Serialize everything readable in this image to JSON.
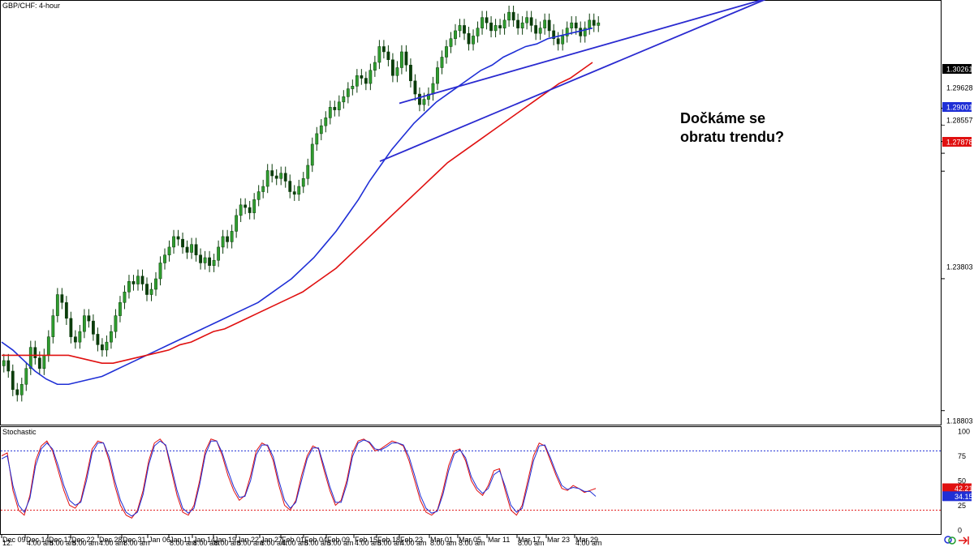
{
  "chart_data": {
    "type": "candlestick",
    "symbol_title": "GBP/CHF: 4-hour",
    "annotation": "Dočkáme se obratu trendu?",
    "price_axis": {
      "ticks": [
        "1.30261",
        "1.29628",
        "1.29001",
        "1.28557",
        "1.27878",
        "1.23803",
        "1.18803"
      ],
      "ylim": [
        1.18303,
        1.34303
      ]
    },
    "price_labels": [
      {
        "value": "1.30261",
        "color": "#000000"
      },
      {
        "value": "1.29628",
        "color": "#ffffff"
      },
      {
        "value": "1.29001",
        "color": "#1f2fd6"
      },
      {
        "value": "1.28557",
        "color": "#000000"
      },
      {
        "value": "1.27878",
        "color": "#e01010"
      }
    ],
    "x_axis": {
      "date_labels": [
        "Dec 09",
        "Dec 14",
        "Dec 17",
        "Dec 22",
        "Dec 28",
        "Dec 31",
        "Jan 06",
        "Jan 11",
        "Jan 14",
        "Jan 19",
        "Jan 22",
        "Jan 27",
        "Feb 01",
        "Feb 04",
        "Feb 09",
        "Feb 15",
        "Feb 18",
        "Feb 23",
        "Mar 01",
        "Mar 05",
        "Mar 11",
        "Mar 17",
        "Mar 23",
        "Mar 29"
      ],
      "time_labels": [
        "12:",
        "4:00 am",
        "8:00 am",
        "8:00 am",
        "4:00 am",
        "8:00 am",
        "8:00 am",
        "8:00 am",
        "8:00 am",
        "8:00 am",
        "8:00 am",
        "4:00 am",
        "8:00 am",
        "8:00 am",
        "4:00 am",
        "8:00 am",
        "4:00 am",
        "8:00 am",
        "8:00 am",
        "8:00 am",
        "4:00 am"
      ]
    },
    "series": [
      {
        "name": "",
        "kind": "price_close",
        "color": "#0b3d0b",
        "values": [
          1.207,
          1.203,
          1.196,
          1.194,
          1.198,
          1.204,
          1.212,
          1.208,
          1.204,
          1.209,
          1.216,
          1.224,
          1.232,
          1.229,
          1.223,
          1.216,
          1.214,
          1.218,
          1.224,
          1.222,
          1.217,
          1.213,
          1.211,
          1.214,
          1.218,
          1.224,
          1.229,
          1.233,
          1.237,
          1.236,
          1.239,
          1.236,
          1.232,
          1.234,
          1.238,
          1.244,
          1.247,
          1.25,
          1.254,
          1.253,
          1.25,
          1.248,
          1.251,
          1.247,
          1.244,
          1.246,
          1.243,
          1.245,
          1.25,
          1.254,
          1.252,
          1.256,
          1.262,
          1.266,
          1.265,
          1.263,
          1.268,
          1.271,
          1.273,
          1.279,
          1.277,
          1.276,
          1.278,
          1.275,
          1.271,
          1.27,
          1.273,
          1.276,
          1.281,
          1.289,
          1.293,
          1.296,
          1.299,
          1.303,
          1.302,
          1.305,
          1.307,
          1.31,
          1.311,
          1.315,
          1.314,
          1.312,
          1.317,
          1.32,
          1.326,
          1.324,
          1.321,
          1.315,
          1.318,
          1.324,
          1.319,
          1.313,
          1.308,
          1.304,
          1.306,
          1.308,
          1.312,
          1.318,
          1.322,
          1.326,
          1.329,
          1.332,
          1.334,
          1.331,
          1.327,
          1.33,
          1.333,
          1.337,
          1.335,
          1.332,
          1.334,
          1.333,
          1.336,
          1.339,
          1.336,
          1.333,
          1.335,
          1.337,
          1.334,
          1.331,
          1.333,
          1.336,
          1.332,
          1.329,
          1.327,
          1.33,
          1.333,
          1.335,
          1.333,
          1.33,
          1.333,
          1.336,
          1.334,
          1.335
        ]
      },
      {
        "name": "",
        "kind": "moving_average_fast",
        "color": "#1f2fd6",
        "values": [
          1.214,
          1.211,
          1.207,
          1.203,
          1.2,
          1.198,
          1.198,
          1.199,
          1.2,
          1.201,
          1.203,
          1.205,
          1.207,
          1.209,
          1.211,
          1.213,
          1.215,
          1.217,
          1.219,
          1.221,
          1.223,
          1.225,
          1.227,
          1.229,
          1.232,
          1.235,
          1.238,
          1.242,
          1.246,
          1.251,
          1.256,
          1.262,
          1.268,
          1.275,
          1.281,
          1.287,
          1.292,
          1.297,
          1.301,
          1.305,
          1.308,
          1.311,
          1.314,
          1.317,
          1.319,
          1.322,
          1.324,
          1.326,
          1.327,
          1.329,
          1.33,
          1.331,
          1.332,
          1.333
        ]
      },
      {
        "name": "",
        "kind": "moving_average_slow",
        "color": "#e01010",
        "values": [
          1.209,
          1.209,
          1.209,
          1.209,
          1.209,
          1.209,
          1.209,
          1.208,
          1.207,
          1.206,
          1.206,
          1.207,
          1.208,
          1.209,
          1.21,
          1.211,
          1.213,
          1.214,
          1.216,
          1.218,
          1.219,
          1.221,
          1.223,
          1.225,
          1.227,
          1.229,
          1.231,
          1.233,
          1.236,
          1.239,
          1.242,
          1.246,
          1.25,
          1.254,
          1.258,
          1.262,
          1.266,
          1.27,
          1.274,
          1.278,
          1.282,
          1.285,
          1.288,
          1.291,
          1.294,
          1.297,
          1.3,
          1.303,
          1.306,
          1.309,
          1.312,
          1.314,
          1.317,
          1.32
        ]
      }
    ],
    "trendlines": [
      {
        "name": "",
        "color": "#2a2ad0",
        "points": [
          [
            0.41,
            1.3045
          ],
          [
            0.79,
            1.3445
          ]
        ]
      },
      {
        "name": "",
        "color": "#2a2ad0",
        "points": [
          [
            0.39,
            1.2825
          ],
          [
            0.79,
            1.3445
          ]
        ]
      }
    ],
    "stochastic": {
      "title": "Stochastic",
      "ylim": [
        0,
        100
      ],
      "ticks": [
        "100",
        "75",
        "50",
        "25",
        "0"
      ],
      "levels": [
        80,
        20
      ],
      "current": [
        {
          "value": "42.21",
          "color": "#e01010"
        },
        {
          "value": "34.15",
          "color": "#1f2fd6"
        }
      ],
      "series": [
        {
          "name": "",
          "color": "#e01010",
          "values": [
            75,
            78,
            40,
            20,
            15,
            35,
            70,
            85,
            90,
            80,
            60,
            40,
            25,
            22,
            30,
            55,
            82,
            90,
            88,
            70,
            45,
            25,
            15,
            12,
            20,
            40,
            70,
            88,
            92,
            85,
            60,
            35,
            18,
            15,
            25,
            50,
            80,
            92,
            90,
            75,
            55,
            40,
            30,
            35,
            55,
            80,
            88,
            85,
            70,
            45,
            25,
            20,
            30,
            55,
            75,
            85,
            82,
            60,
            40,
            25,
            30,
            50,
            78,
            90,
            92,
            88,
            80,
            82,
            86,
            90,
            88,
            85,
            70,
            50,
            30,
            18,
            15,
            20,
            40,
            65,
            80,
            82,
            70,
            50,
            40,
            35,
            45,
            60,
            62,
            40,
            20,
            15,
            25,
            50,
            75,
            88,
            85,
            70,
            55,
            42,
            40,
            45,
            42,
            38,
            40,
            42
          ]
        },
        {
          "name": "",
          "color": "#1f2fd6",
          "values": [
            72,
            75,
            45,
            25,
            18,
            32,
            65,
            82,
            88,
            82,
            65,
            45,
            30,
            25,
            28,
            50,
            78,
            88,
            88,
            74,
            50,
            30,
            18,
            14,
            18,
            36,
            66,
            85,
            90,
            86,
            64,
            40,
            22,
            17,
            22,
            46,
            76,
            90,
            90,
            78,
            60,
            44,
            33,
            34,
            50,
            76,
            86,
            86,
            74,
            50,
            30,
            22,
            28,
            50,
            72,
            83,
            83,
            64,
            44,
            28,
            28,
            46,
            74,
            88,
            91,
            89,
            82,
            81,
            84,
            88,
            88,
            86,
            74,
            55,
            35,
            22,
            17,
            19,
            36,
            60,
            77,
            81,
            73,
            54,
            43,
            37,
            42,
            56,
            60,
            44,
            25,
            18,
            22,
            45,
            70,
            85,
            86,
            73,
            58,
            45,
            41,
            43,
            42,
            39,
            39,
            34
          ]
        }
      ]
    }
  }
}
